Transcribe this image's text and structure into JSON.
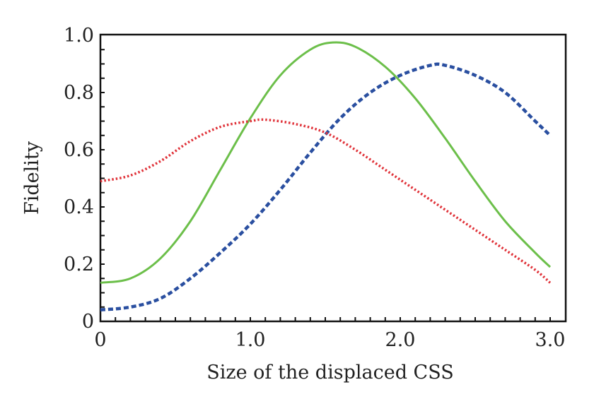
{
  "chart_data": {
    "type": "line",
    "title": "",
    "xlabel": "Size of the displaced CSS",
    "ylabel": "Fidelity",
    "xlim": [
      0,
      3.1
    ],
    "ylim": [
      0,
      1.0
    ],
    "xticks": [
      0,
      1.0,
      2.0,
      3.0
    ],
    "xtick_labels": [
      "0",
      "1.0",
      "2.0",
      "3.0"
    ],
    "yticks": [
      0,
      0.2,
      0.4,
      0.6,
      0.8,
      1.0
    ],
    "ytick_labels": [
      "0",
      "0.2",
      "0.4",
      "0.6",
      "0.8",
      "1.0"
    ],
    "grid": false,
    "series": [
      {
        "style": "solid",
        "color": "#6cbf4a",
        "x": [
          0,
          0.2,
          0.4,
          0.6,
          0.8,
          1.0,
          1.2,
          1.4,
          1.55,
          1.7,
          1.9,
          2.1,
          2.3,
          2.5,
          2.7,
          2.9,
          3.0
        ],
        "y": [
          0.135,
          0.15,
          0.22,
          0.35,
          0.53,
          0.71,
          0.86,
          0.95,
          0.975,
          0.96,
          0.89,
          0.78,
          0.64,
          0.49,
          0.35,
          0.24,
          0.19
        ]
      },
      {
        "style": "dashed",
        "color": "#2a4fa0",
        "x": [
          0,
          0.2,
          0.4,
          0.6,
          0.8,
          1.0,
          1.2,
          1.4,
          1.6,
          1.8,
          2.0,
          2.2,
          2.3,
          2.5,
          2.7,
          2.9,
          3.0
        ],
        "y": [
          0.04,
          0.05,
          0.08,
          0.15,
          0.24,
          0.34,
          0.46,
          0.59,
          0.71,
          0.8,
          0.86,
          0.895,
          0.895,
          0.86,
          0.8,
          0.7,
          0.65
        ]
      },
      {
        "style": "dotted",
        "color": "#e0333a",
        "x": [
          0,
          0.2,
          0.4,
          0.6,
          0.8,
          1.0,
          1.1,
          1.3,
          1.5,
          1.7,
          1.9,
          2.1,
          2.3,
          2.5,
          2.7,
          2.9,
          3.0
        ],
        "y": [
          0.49,
          0.51,
          0.56,
          0.63,
          0.68,
          0.7,
          0.705,
          0.69,
          0.66,
          0.6,
          0.53,
          0.46,
          0.39,
          0.32,
          0.25,
          0.18,
          0.135
        ]
      }
    ]
  }
}
